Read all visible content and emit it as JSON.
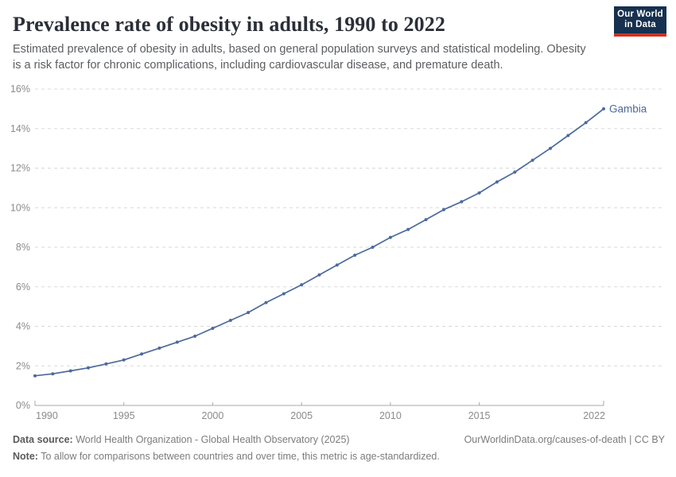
{
  "header": {
    "title": "Prevalence rate of obesity in adults, 1990 to 2022",
    "subtitle": "Estimated prevalence of obesity in adults, based on general population surveys and statistical modeling. Obesity is a risk factor for chronic complications, including cardiovascular disease, and premature death.",
    "logo_line1": "Our World",
    "logo_line2": "in Data"
  },
  "chart_data": {
    "type": "line",
    "title": "Prevalence rate of obesity in adults, 1990 to 2022",
    "xlabel": "",
    "ylabel": "",
    "xlim": [
      1990,
      2022
    ],
    "ylim": [
      0,
      16
    ],
    "xticks": [
      1990,
      1995,
      2000,
      2005,
      2010,
      2015,
      2022
    ],
    "yticks": [
      0,
      2,
      4,
      6,
      8,
      10,
      12,
      14,
      16
    ],
    "y_suffix": "%",
    "grid": "horizontal-dashed",
    "legend_position": "end-of-line-label",
    "series": [
      {
        "name": "Gambia",
        "color": "#4c6a9c",
        "x": [
          1990,
          1991,
          1992,
          1993,
          1994,
          1995,
          1996,
          1997,
          1998,
          1999,
          2000,
          2001,
          2002,
          2003,
          2004,
          2005,
          2006,
          2007,
          2008,
          2009,
          2010,
          2011,
          2012,
          2013,
          2014,
          2015,
          2016,
          2017,
          2018,
          2019,
          2020,
          2021,
          2022
        ],
        "values": [
          1.5,
          1.6,
          1.75,
          1.9,
          2.1,
          2.3,
          2.6,
          2.9,
          3.2,
          3.5,
          3.9,
          4.3,
          4.7,
          5.2,
          5.65,
          6.1,
          6.6,
          7.1,
          7.6,
          8.0,
          8.5,
          8.9,
          9.4,
          9.9,
          10.3,
          10.75,
          11.3,
          11.8,
          12.4,
          13.0,
          13.65,
          14.3,
          15.0
        ]
      }
    ],
    "colors": {
      "gridline": "#d9d9d9",
      "axis_line": "#a9a9a9",
      "tick_text": "#8b8b8b"
    }
  },
  "footer": {
    "data_source_label": "Data source:",
    "data_source_value": " World Health Organization - Global Health Observatory (2025)",
    "attribution": "OurWorldinData.org/causes-of-death | CC BY",
    "note_label": "Note:",
    "note_value": " To allow for comparisons between countries and over time, this metric is age-standardized."
  }
}
